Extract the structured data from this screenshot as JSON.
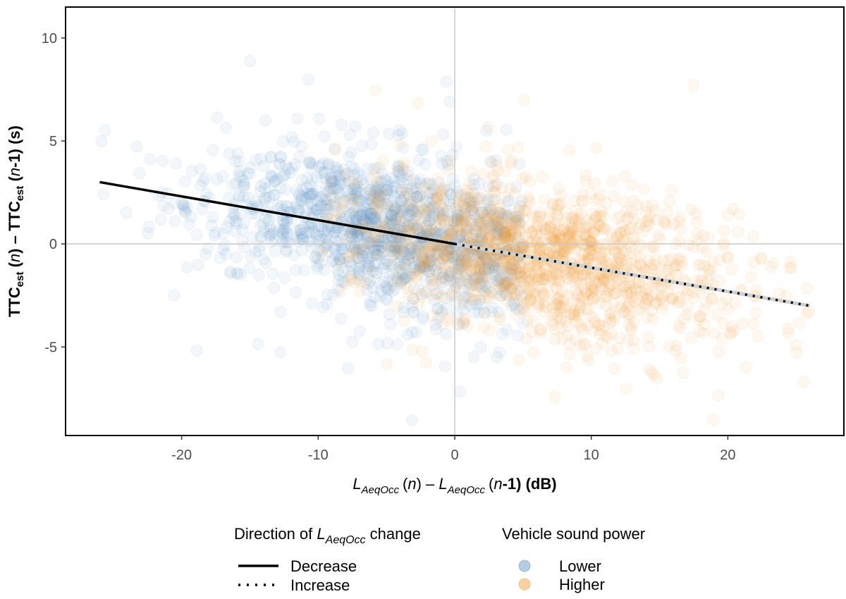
{
  "chart_data": {
    "type": "scatter",
    "xlim": [
      -28.5,
      28.5
    ],
    "ylim": [
      -9.3,
      11.5
    ],
    "x_ticks": [
      -20,
      -10,
      0,
      10,
      20
    ],
    "y_ticks": [
      -5,
      0,
      5,
      10
    ],
    "x_tick_labels": [
      "-20",
      "-10",
      "0",
      "10",
      "20"
    ],
    "y_tick_labels": [
      "-5",
      "0",
      "5",
      "10"
    ],
    "xlabel": {
      "main1": "L",
      "sub1": "AeqOcc",
      "mid": "(n) – L",
      "sub2": "AeqOcc",
      "n": "n",
      "end": "-1) (dB)"
    },
    "ylabel": {
      "ttc1": "TTC",
      "sub1": "est",
      "mid1": " (",
      "n1": "n",
      "mid2": ") – TTC",
      "sub2": "est",
      "mid3": " (",
      "n2": "n",
      "end": "-1) (s)"
    },
    "reference_lines": {
      "x": 0,
      "y": 0
    },
    "trend_lines": [
      {
        "name": "Decrease",
        "style": "solid",
        "color": "#000000",
        "x": [
          -26,
          0
        ],
        "y": [
          3.0,
          0.0
        ]
      },
      {
        "name": "Increase",
        "style": "dotted",
        "color": "#000000",
        "x": [
          0,
          26
        ],
        "y": [
          0.0,
          -3.0
        ]
      }
    ],
    "series": [
      {
        "name": "Lower",
        "color": "#5b8fc4",
        "x_range": [
          -26,
          5
        ],
        "y_center_slope": -0.115,
        "y_spread": 2.4,
        "count": 1500
      },
      {
        "name": "Higher",
        "color": "#f39a35",
        "x_range": [
          -10,
          26
        ],
        "y_center_slope": -0.115,
        "y_spread": 2.4,
        "count": 1500
      }
    ],
    "legend": {
      "direction": {
        "title_prefix": "Direction of ",
        "title_L": "L",
        "title_sub": "AeqOcc",
        "title_suffix": " change",
        "items": [
          "Decrease",
          "Increase"
        ]
      },
      "sound": {
        "title": "Vehicle sound power",
        "items": [
          "Lower",
          "Higher"
        ]
      },
      "placement": "bottom"
    }
  }
}
